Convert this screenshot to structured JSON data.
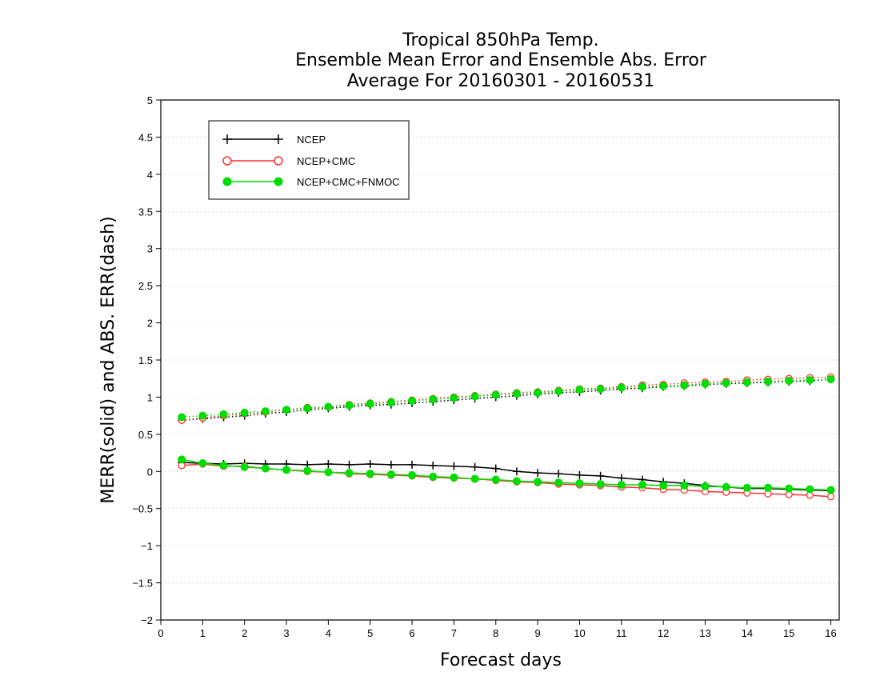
{
  "chart_data": {
    "type": "line",
    "title_lines": [
      "Tropical 850hPa Temp.",
      "Ensemble Mean Error and Ensemble Abs. Error",
      "Average For 20160301 - 20160531"
    ],
    "xlabel": "Forecast days",
    "ylabel": "MERR(solid) and ABS. ERR(dash)",
    "xlim": [
      0,
      16.2
    ],
    "ylim": [
      -2,
      5
    ],
    "xticks": [
      0,
      1,
      2,
      3,
      4,
      5,
      6,
      7,
      8,
      9,
      10,
      11,
      12,
      13,
      14,
      15,
      16
    ],
    "xtick_labels": [
      "0",
      "1",
      "2",
      "3",
      "4",
      "5",
      "6",
      "7",
      "8",
      "9",
      "10",
      "11",
      "12",
      "13",
      "14",
      "15",
      "16"
    ],
    "yticks": [
      -2,
      -1.5,
      -1,
      -0.5,
      0,
      0.5,
      1,
      1.5,
      2,
      2.5,
      3,
      3.5,
      4,
      4.5,
      5
    ],
    "ytick_labels": [
      "−2",
      "−1.5",
      "−1",
      "−0.5",
      "0",
      "0.5",
      "1",
      "1.5",
      "2",
      "2.5",
      "3",
      "3.5",
      "4",
      "4.5",
      "5"
    ],
    "grid": "horizontal dotted",
    "legend_position": "top-left",
    "x": [
      0.5,
      1,
      1.5,
      2,
      2.5,
      3,
      3.5,
      4,
      4.5,
      5,
      5.5,
      6,
      6.5,
      7,
      7.5,
      8,
      8.5,
      9,
      9.5,
      10,
      10.5,
      11,
      11.5,
      12,
      12.5,
      13,
      13.5,
      14,
      14.5,
      15,
      15.5,
      16
    ],
    "series": [
      {
        "name": "NCEP",
        "color": "#000000",
        "marker": "plus",
        "mean_error": [
          0.12,
          0.11,
          0.1,
          0.11,
          0.1,
          0.1,
          0.09,
          0.1,
          0.09,
          0.1,
          0.09,
          0.09,
          0.08,
          0.07,
          0.06,
          0.04,
          0.0,
          -0.02,
          -0.03,
          -0.05,
          -0.06,
          -0.09,
          -0.11,
          -0.14,
          -0.16,
          -0.19,
          -0.21,
          -0.23,
          -0.23,
          -0.24,
          -0.25,
          -0.26
        ],
        "abs_error": [
          0.69,
          0.71,
          0.73,
          0.75,
          0.78,
          0.8,
          0.83,
          0.85,
          0.87,
          0.89,
          0.9,
          0.92,
          0.94,
          0.96,
          0.98,
          1.0,
          1.02,
          1.04,
          1.06,
          1.07,
          1.09,
          1.11,
          1.12,
          1.14,
          1.15,
          1.17,
          1.18,
          1.19,
          1.2,
          1.21,
          1.22,
          1.24
        ]
      },
      {
        "name": "NCEP+CMC",
        "color": "#ff3030",
        "marker": "open-circle",
        "mean_error": [
          0.08,
          0.1,
          0.07,
          0.07,
          0.04,
          0.02,
          0.0,
          -0.01,
          -0.03,
          -0.04,
          -0.05,
          -0.06,
          -0.08,
          -0.09,
          -0.1,
          -0.12,
          -0.14,
          -0.15,
          -0.17,
          -0.18,
          -0.19,
          -0.21,
          -0.22,
          -0.24,
          -0.25,
          -0.27,
          -0.28,
          -0.29,
          -0.3,
          -0.31,
          -0.32,
          -0.34
        ],
        "abs_error": [
          0.69,
          0.72,
          0.75,
          0.78,
          0.8,
          0.83,
          0.86,
          0.87,
          0.9,
          0.92,
          0.94,
          0.96,
          0.98,
          1.0,
          1.02,
          1.04,
          1.06,
          1.07,
          1.09,
          1.11,
          1.12,
          1.14,
          1.16,
          1.17,
          1.19,
          1.2,
          1.21,
          1.23,
          1.24,
          1.25,
          1.26,
          1.27
        ]
      },
      {
        "name": "NCEP+CMC+FNMOC",
        "color": "#00dd00",
        "marker": "filled-circle",
        "mean_error": [
          0.16,
          0.11,
          0.08,
          0.06,
          0.04,
          0.02,
          0.01,
          -0.01,
          -0.02,
          -0.03,
          -0.04,
          -0.05,
          -0.07,
          -0.08,
          -0.1,
          -0.11,
          -0.13,
          -0.14,
          -0.15,
          -0.16,
          -0.17,
          -0.18,
          -0.18,
          -0.19,
          -0.19,
          -0.2,
          -0.21,
          -0.22,
          -0.22,
          -0.23,
          -0.24,
          -0.25
        ],
        "abs_error": [
          0.73,
          0.75,
          0.77,
          0.79,
          0.81,
          0.83,
          0.85,
          0.87,
          0.89,
          0.91,
          0.93,
          0.95,
          0.97,
          0.99,
          1.01,
          1.03,
          1.05,
          1.06,
          1.08,
          1.1,
          1.11,
          1.13,
          1.14,
          1.15,
          1.16,
          1.18,
          1.19,
          1.2,
          1.21,
          1.22,
          1.23,
          1.24
        ]
      }
    ]
  }
}
